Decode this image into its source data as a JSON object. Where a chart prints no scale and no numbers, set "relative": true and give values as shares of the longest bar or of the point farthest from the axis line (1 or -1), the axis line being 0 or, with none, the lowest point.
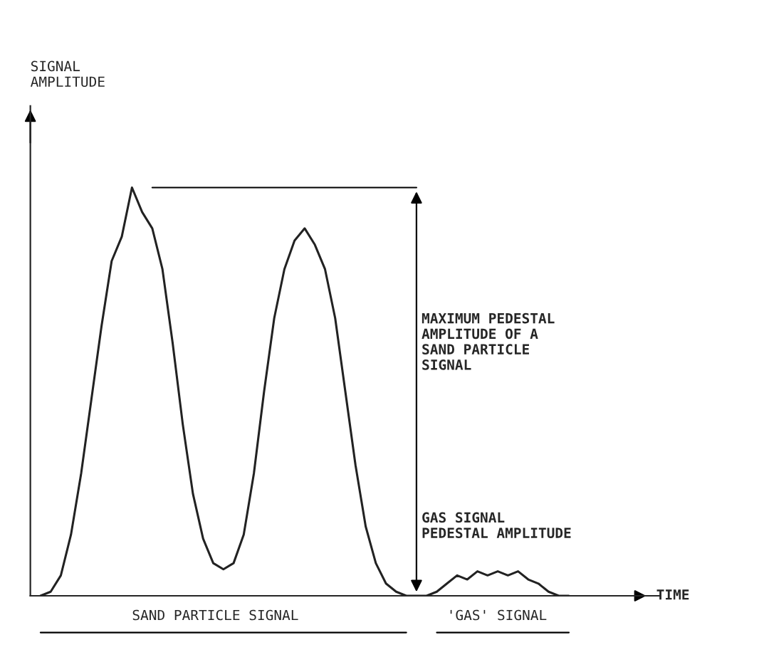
{
  "chart_data": {
    "type": "line",
    "relative": true,
    "color": "#222222",
    "categories": [
      null,
      null,
      null,
      null,
      null,
      null,
      null,
      null,
      null,
      null,
      null,
      null,
      null,
      null,
      null,
      null,
      null,
      null,
      null,
      null,
      null,
      null,
      null,
      null,
      null,
      null,
      null,
      null,
      null,
      null,
      null,
      null,
      null,
      null,
      null,
      null,
      null,
      null,
      null,
      null,
      null,
      null,
      null,
      null,
      null,
      null,
      null,
      null,
      null,
      null,
      null,
      null,
      null
    ],
    "values": [
      0,
      0.01,
      0.05,
      0.15,
      0.3,
      0.48,
      0.66,
      0.82,
      0.88,
      1.0,
      0.94,
      0.9,
      0.8,
      0.62,
      0.42,
      0.25,
      0.14,
      0.08,
      0.065,
      0.08,
      0.15,
      0.3,
      0.5,
      0.68,
      0.8,
      0.87,
      0.9,
      0.86,
      0.8,
      0.68,
      0.5,
      0.32,
      0.17,
      0.08,
      0.03,
      0.01,
      0,
      0,
      0,
      0.01,
      0.03,
      0.05,
      0.04,
      0.06,
      0.05,
      0.06,
      0.05,
      0.06,
      0.04,
      0.03,
      0.01,
      0,
      0
    ],
    "ref_lines": [
      {
        "axis": "y",
        "value": 1
      }
    ],
    "annotations": [
      "MAXIMUM PEDESTAL\nAMPLITUDE OF A\nSAND PARTICLE\nSIGNAL",
      "GAS SIGNAL\nPEDESTAL AMPLITUDE",
      "SAND PARTICLE SIGNAL",
      "'GAS' SIGNAL",
      "TIME",
      "SIGNAL\nAMPLITUDE"
    ],
    "grid": false
  }
}
